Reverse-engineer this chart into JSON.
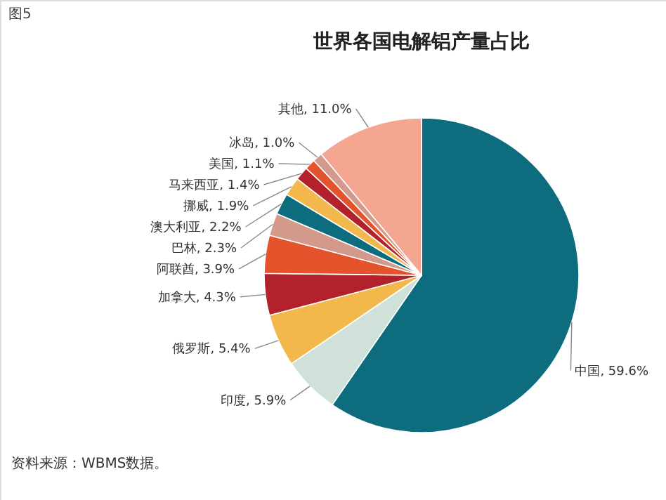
{
  "chart_data": {
    "type": "pie",
    "title": "世界各国电解铝产量占比",
    "subtitle": "图5",
    "categories": [
      "中国",
      "印度",
      "俄罗斯",
      "加拿大",
      "阿联酋",
      "巴林",
      "澳大利亚",
      "挪威",
      "马来西亚",
      "美国",
      "冰岛",
      "其他"
    ],
    "values": [
      59.6,
      5.9,
      5.4,
      4.3,
      3.9,
      2.3,
      2.2,
      1.9,
      1.4,
      1.1,
      1.0,
      11.0
    ],
    "value_labels": [
      "59.6%",
      "5.9%",
      "5.4%",
      "4.3%",
      "3.9%",
      "2.3%",
      "2.2%",
      "1.9%",
      "1.4%",
      "1.1%",
      "1.0%",
      "11.0%"
    ],
    "colors": [
      "#0d6d7e",
      "#cfe1d9",
      "#f2b84b",
      "#b3212c",
      "#e4532c",
      "#d39a8b",
      "#0d6d7e",
      "#f2b84b",
      "#b3212c",
      "#e4532c",
      "#d39a8b",
      "#f4a690"
    ],
    "annotations": [
      "资料来源：WBMS数据。"
    ]
  }
}
